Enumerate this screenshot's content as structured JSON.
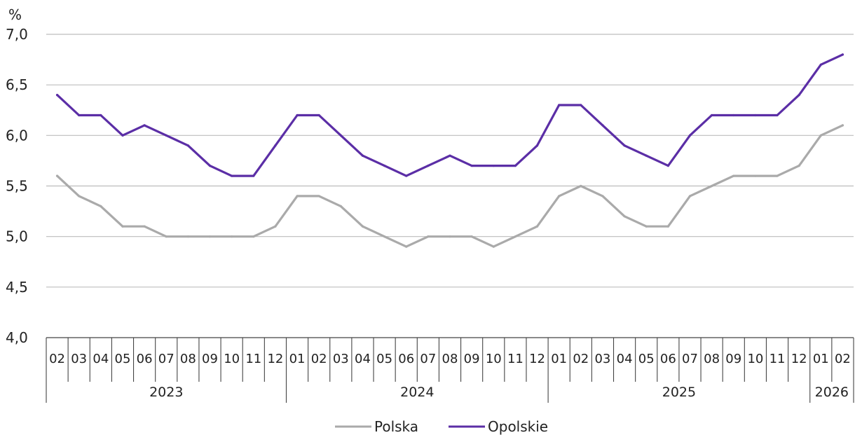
{
  "chart_data": {
    "type": "line",
    "ylabel": "%",
    "ylim": [
      4.0,
      7.0
    ],
    "yticks": [
      "7,0",
      "6,5",
      "6,0",
      "5,5",
      "5,0",
      "4,5",
      "4,0"
    ],
    "grid": true,
    "legend_position": "bottom",
    "categories": [
      "02",
      "03",
      "04",
      "05",
      "06",
      "07",
      "08",
      "09",
      "10",
      "11",
      "12",
      "01",
      "02",
      "03",
      "04",
      "05",
      "06",
      "07",
      "08",
      "09",
      "10",
      "11",
      "12",
      "01",
      "02",
      "03",
      "04",
      "05",
      "06",
      "07",
      "08",
      "09",
      "10",
      "11",
      "12",
      "01",
      "02"
    ],
    "years": [
      {
        "label": "2023",
        "start": 0,
        "end": 10
      },
      {
        "label": "2024",
        "start": 11,
        "end": 22
      },
      {
        "label": "2025",
        "start": 23,
        "end": 34
      },
      {
        "label": "2026",
        "start": 35,
        "end": 36
      }
    ],
    "series": [
      {
        "name": "Polska",
        "color": "#aaaaaa",
        "values": [
          5.6,
          5.4,
          5.3,
          5.1,
          5.1,
          5.0,
          5.0,
          5.0,
          5.0,
          5.0,
          5.1,
          5.4,
          5.4,
          5.3,
          5.1,
          5.0,
          4.9,
          5.0,
          5.0,
          5.0,
          4.9,
          5.0,
          5.1,
          5.4,
          5.5,
          5.4,
          5.2,
          5.1,
          5.1,
          5.4,
          5.5,
          5.6,
          5.6,
          5.6,
          5.7,
          6.0,
          6.1
        ]
      },
      {
        "name": "Opolskie",
        "color": "#5b2ea6",
        "values": [
          6.4,
          6.2,
          6.2,
          6.0,
          6.1,
          6.0,
          5.9,
          5.7,
          5.6,
          5.6,
          5.9,
          6.2,
          6.2,
          6.0,
          5.8,
          5.7,
          5.6,
          5.7,
          5.8,
          5.7,
          5.7,
          5.7,
          5.9,
          6.3,
          6.3,
          6.1,
          5.9,
          5.8,
          5.7,
          6.0,
          6.2,
          6.2,
          6.2,
          6.2,
          6.4,
          6.7,
          6.8
        ]
      }
    ]
  }
}
